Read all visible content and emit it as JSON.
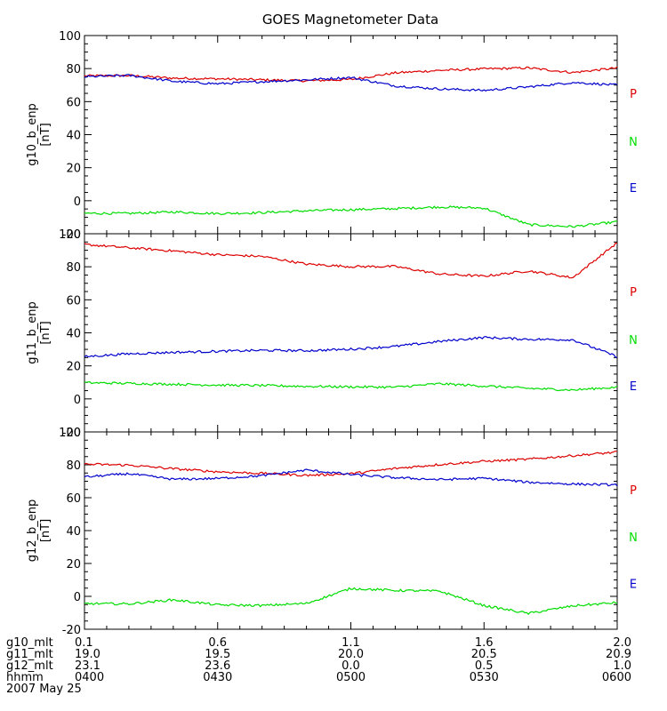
{
  "title": "GOES Magnetometer Data",
  "colors": {
    "P": "#dd0000",
    "N": "#00dd00",
    "E": "#0000cc"
  },
  "x_axis": {
    "ticks_minutes": [
      0,
      30,
      60,
      90,
      120
    ],
    "minor_step_minutes": 5,
    "rows": [
      {
        "label": "g10_mlt",
        "values": [
          "0.1",
          "0.6",
          "1.1",
          "1.6",
          "2.0"
        ]
      },
      {
        "label": "g11_mlt",
        "values": [
          "19.0",
          "19.5",
          "20.0",
          "20.5",
          "20.9"
        ]
      },
      {
        "label": "g12_mlt",
        "values": [
          "23.1",
          "23.6",
          "0.0",
          "0.5",
          "1.0"
        ]
      },
      {
        "label": "hhmm",
        "values": [
          "0400",
          "0430",
          "0500",
          "0530",
          "0600"
        ]
      }
    ],
    "date": "2007 May 25"
  },
  "chart_data": [
    {
      "type": "line",
      "title": "GOES Magnetometer Data",
      "ylabel": "g10_b_enp",
      "yunit": "[nT]",
      "ylim": [
        -20,
        100
      ],
      "yticks": [
        -20,
        0,
        20,
        40,
        60,
        80,
        100
      ],
      "x": [
        0,
        10,
        20,
        30,
        40,
        50,
        60,
        70,
        80,
        90,
        100,
        110,
        120
      ],
      "legend": [
        "P",
        "N",
        "E"
      ],
      "series": [
        {
          "name": "P",
          "values": [
            75.6,
            75.8,
            74.2,
            73.8,
            73.2,
            72.6,
            73.4,
            77.4,
            78.9,
            79.8,
            80.4,
            77.6,
            80.4
          ]
        },
        {
          "name": "N",
          "values": [
            -7.6,
            -7.7,
            -6.8,
            -7.8,
            -7.2,
            -6.1,
            -5.4,
            -4.8,
            -3.8,
            -4.4,
            -14.5,
            -15.7,
            -12.8
          ]
        },
        {
          "name": "E",
          "values": [
            75.0,
            75.9,
            72.3,
            70.8,
            72.1,
            73.2,
            74.6,
            69.5,
            67.7,
            66.8,
            68.9,
            71.6,
            70.0
          ]
        }
      ]
    },
    {
      "type": "line",
      "ylabel": "g11_b_enp",
      "yunit": "[nT]",
      "ylim": [
        -20,
        100
      ],
      "yticks": [
        -20,
        0,
        20,
        40,
        60,
        80,
        100
      ],
      "x": [
        0,
        10,
        20,
        30,
        40,
        50,
        60,
        70,
        80,
        90,
        100,
        110,
        120
      ],
      "legend": [
        "P",
        "N",
        "E"
      ],
      "series": [
        {
          "name": "P",
          "values": [
            93.5,
            91.5,
            89.6,
            87.3,
            86.3,
            81.6,
            80.1,
            80.2,
            75.6,
            74.3,
            77.5,
            73.4,
            94.6
          ]
        },
        {
          "name": "N",
          "values": [
            9.8,
            9.4,
            8.9,
            8.4,
            8.1,
            7.6,
            7.3,
            7.1,
            9.2,
            7.8,
            6.4,
            5.4,
            7.1
          ]
        },
        {
          "name": "E",
          "values": [
            25.6,
            27.3,
            28.2,
            28.8,
            29.4,
            29.2,
            30.1,
            31.8,
            34.8,
            37.2,
            36.1,
            35.8,
            25.6
          ]
        }
      ]
    },
    {
      "type": "line",
      "ylabel": "g12_b_enp",
      "yunit": "[nT]",
      "ylim": [
        -20,
        100
      ],
      "yticks": [
        -20,
        0,
        20,
        40,
        60,
        80,
        100
      ],
      "x": [
        0,
        10,
        20,
        30,
        40,
        50,
        60,
        70,
        80,
        90,
        100,
        110,
        120
      ],
      "legend": [
        "P",
        "N",
        "E"
      ],
      "series": [
        {
          "name": "P",
          "values": [
            80.4,
            79.8,
            77.6,
            75.8,
            74.8,
            73.6,
            74.6,
            77.8,
            80.2,
            82.1,
            83.4,
            85.6,
            87.7
          ]
        },
        {
          "name": "N",
          "values": [
            -4.4,
            -4.6,
            -2.1,
            -5.2,
            -5.6,
            -4.3,
            4.8,
            3.6,
            3.2,
            -5.6,
            -10.4,
            -5.8,
            -3.8
          ]
        },
        {
          "name": "E",
          "values": [
            72.6,
            74.6,
            71.2,
            71.7,
            73.4,
            76.8,
            74.1,
            72.2,
            71.0,
            71.8,
            69.4,
            68.3,
            67.8
          ]
        }
      ]
    }
  ]
}
